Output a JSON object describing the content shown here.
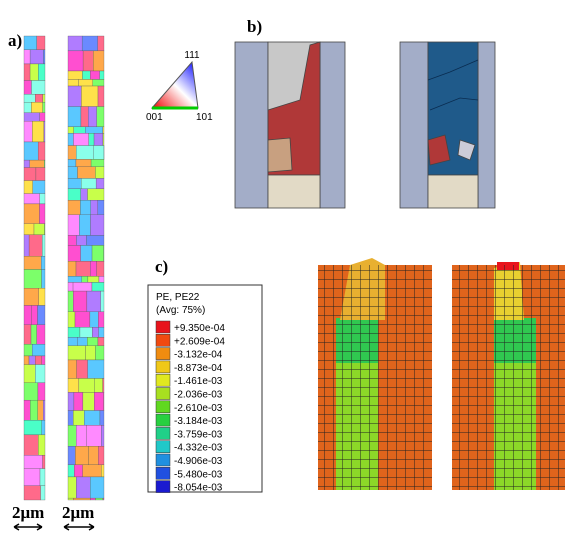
{
  "panel_labels": [
    "a)",
    "b)",
    "c)"
  ],
  "scale_bars": [
    "2μm",
    "2μm"
  ],
  "ipf_key": {
    "top": "111",
    "left": "001",
    "right": "101"
  },
  "legend": {
    "title": "PE, PE22",
    "subtitle": "(Avg: 75%)",
    "entries": [
      {
        "label": "+9.350e-04",
        "color": "#e8141c"
      },
      {
        "label": "+2.609e-04",
        "color": "#f04a10"
      },
      {
        "label": "-3.132e-04",
        "color": "#f08c10"
      },
      {
        "label": "-8.873e-04",
        "color": "#f0c818"
      },
      {
        "label": "-1.461e-03",
        "color": "#e0e820"
      },
      {
        "label": "-2.036e-03",
        "color": "#a8e020"
      },
      {
        "label": "-2.610e-03",
        "color": "#60d820"
      },
      {
        "label": "-3.184e-03",
        "color": "#28d040"
      },
      {
        "label": "-3.759e-03",
        "color": "#20d088"
      },
      {
        "label": "-4.332e-03",
        "color": "#20c8c8"
      },
      {
        "label": "-4.906e-03",
        "color": "#2090e0"
      },
      {
        "label": "-5.480e-03",
        "color": "#2050e0"
      },
      {
        "label": "-8.054e-03",
        "color": "#1a1ad0"
      }
    ]
  }
}
